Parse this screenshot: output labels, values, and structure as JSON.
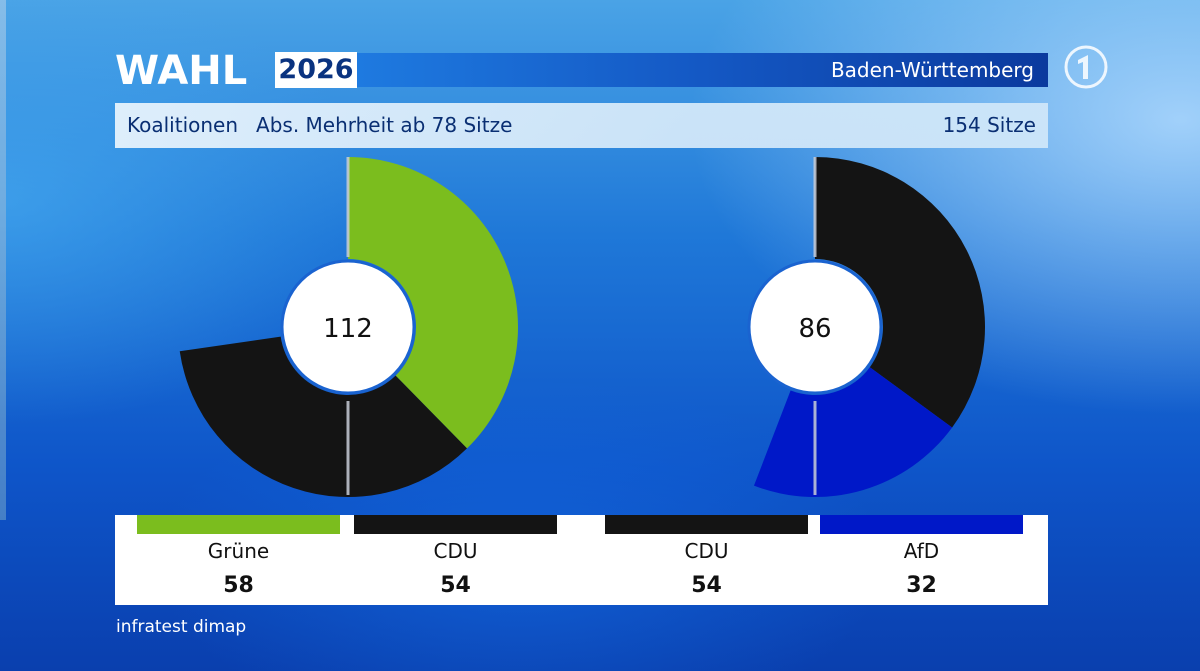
{
  "header": {
    "wordmark": "WAHL",
    "year": "2026",
    "region": "Baden-Württemberg",
    "logo_icon": "ard-one-logo"
  },
  "subheader": {
    "label": "Koalitionen",
    "majority": "Abs. Mehrheit ab 78 Sitze",
    "total": "154 Sitze"
  },
  "source": "infratest dimap",
  "colors": {
    "Grüne": "#7bbd1e",
    "CDU": "#141414",
    "AfD": "#0018c8"
  },
  "chart_data": {
    "type": "pie",
    "total_seats": 154,
    "majority_seats": 78,
    "coalitions": [
      {
        "total_label": "112",
        "parties": [
          {
            "name": "Grüne",
            "seats": 58,
            "seats_label": "58",
            "color": "#7bbd1e"
          },
          {
            "name": "CDU",
            "seats": 54,
            "seats_label": "54",
            "color": "#141414"
          }
        ]
      },
      {
        "total_label": "86",
        "parties": [
          {
            "name": "CDU",
            "seats": 54,
            "seats_label": "54",
            "color": "#141414"
          },
          {
            "name": "AfD",
            "seats": 32,
            "seats_label": "32",
            "color": "#0018c8"
          }
        ]
      }
    ]
  }
}
